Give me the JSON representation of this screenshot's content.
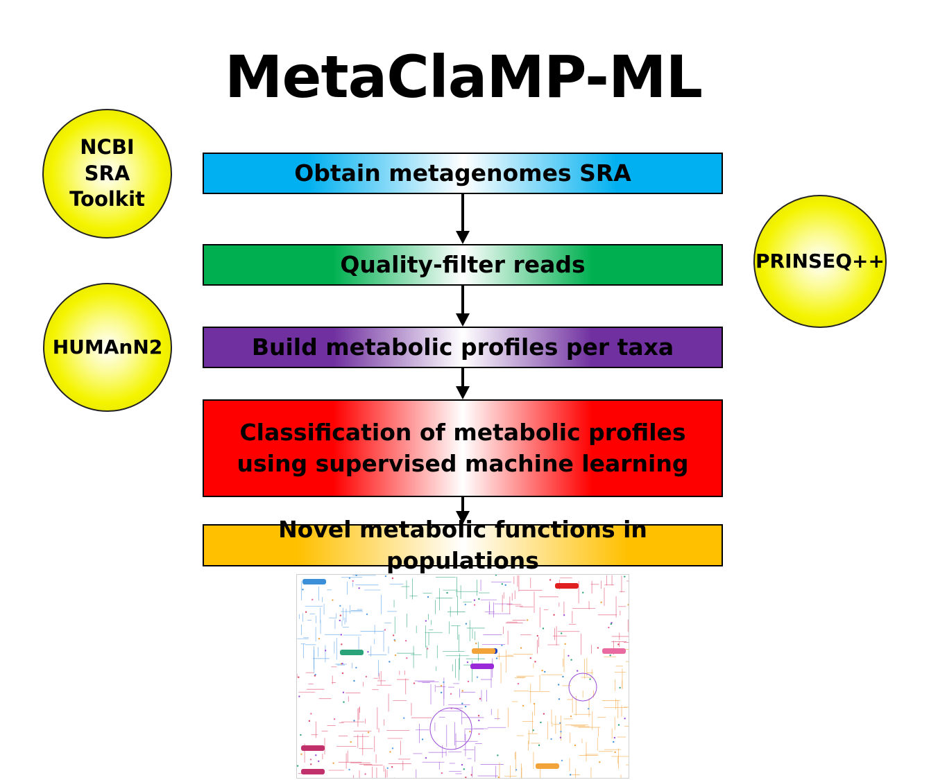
{
  "title": "MetaClaMP-ML",
  "steps": [
    {
      "label": "Obtain metagenomes SRA",
      "color": "#00b0f0"
    },
    {
      "label": "Quality-filter reads",
      "color": "#00b050"
    },
    {
      "label": "Build metabolic profiles per taxa",
      "color": "#7030a0"
    },
    {
      "label": "Classification of metabolic profiles using supervised machine learning",
      "color": "#ff0000"
    },
    {
      "label": "Novel metabolic functions in populations",
      "color": "#ffc000"
    }
  ],
  "tools": [
    {
      "label": "NCBI SRA Toolkit",
      "color": "#f4f400"
    },
    {
      "label": "PRINSEQ++",
      "color": "#f4f400"
    },
    {
      "label": "HUMAnN2",
      "color": "#f4f400"
    }
  ],
  "pathway_map": {
    "colors": [
      "#3a8fd8",
      "#2aa37a",
      "#e04a6a",
      "#f2a33a",
      "#9a4ad8",
      "#5aa0e8",
      "#e86aa0"
    ]
  }
}
